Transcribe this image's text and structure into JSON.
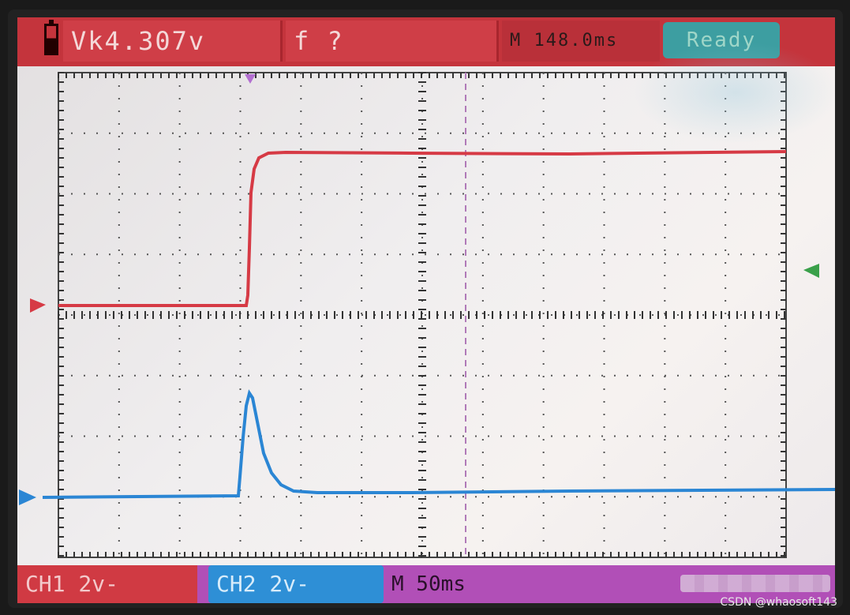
{
  "header": {
    "vk_reading": "Vk4.307v",
    "frequency": "f  ?",
    "time_reading": "M  148.0ms",
    "status": "Ready"
  },
  "footer": {
    "ch1_label": "CH1 2v-",
    "ch2_label": "CH2 2v-",
    "timebase": "M 50ms",
    "watermark": "CSDN @whaosoft143"
  },
  "colors": {
    "ch1": "#d63a45",
    "ch2": "#2b86d4",
    "trigger": "#b14fb7",
    "status_bg": "#3d9ea1"
  }
}
